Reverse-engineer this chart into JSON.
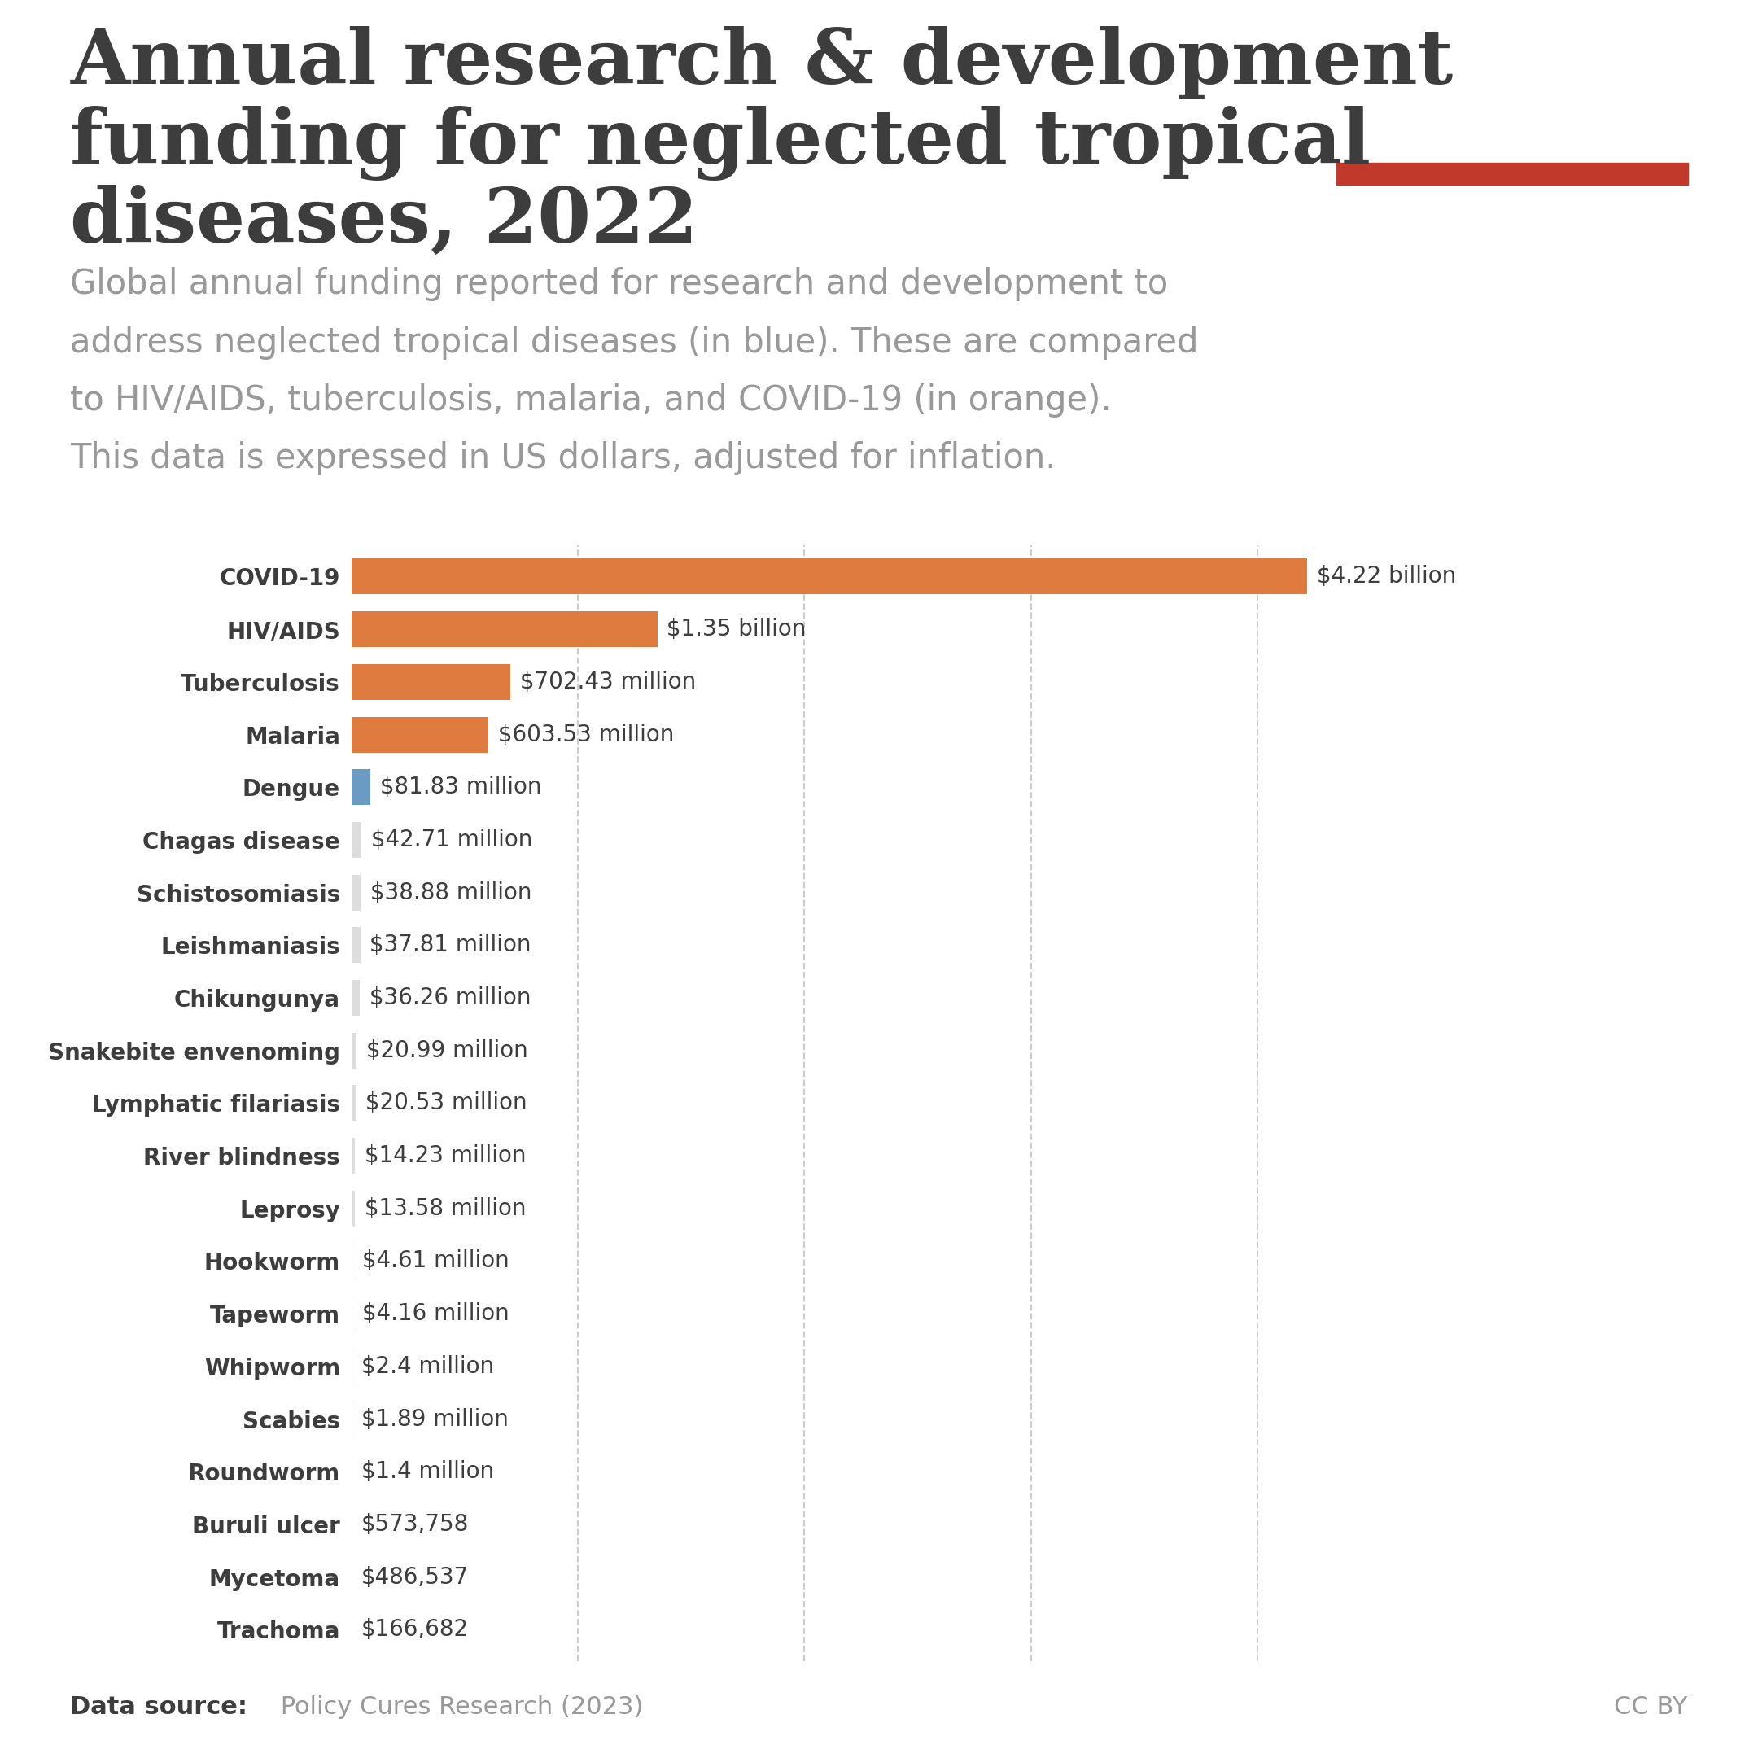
{
  "title_line1": "Annual research & development",
  "title_line2": "funding for neglected tropical",
  "title_line3": "diseases, 2022",
  "subtitle_lines": [
    "Global annual funding reported for research and development to",
    "address neglected tropical diseases (in blue). These are compared",
    "to HIV/AIDS, tuberculosis, malaria, and COVID-19 (in orange).",
    "This data is expressed in US dollars, adjusted for inflation."
  ],
  "categories": [
    "COVID-19",
    "HIV/AIDS",
    "Tuberculosis",
    "Malaria",
    "Dengue",
    "Chagas disease",
    "Schistosomiasis",
    "Leishmaniasis",
    "Chikungunya",
    "Snakebite envenoming",
    "Lymphatic filariasis",
    "River blindness",
    "Leprosy",
    "Hookworm",
    "Tapeworm",
    "Whipworm",
    "Scabies",
    "Roundworm",
    "Buruli ulcer",
    "Mycetoma",
    "Trachoma"
  ],
  "values": [
    4220000000,
    1350000000,
    702430000,
    603530000,
    81830000,
    42710000,
    38880000,
    37810000,
    36260000,
    20990000,
    20530000,
    14230000,
    13580000,
    4610000,
    4160000,
    2400000,
    1890000,
    1400000,
    573758,
    486537,
    166682
  ],
  "labels": [
    "$4.22 billion",
    "$1.35 billion",
    "$702.43 million",
    "$603.53 million",
    "$81.83 million",
    "$42.71 million",
    "$38.88 million",
    "$37.81 million",
    "$36.26 million",
    "$20.99 million",
    "$20.53 million",
    "$14.23 million",
    "$13.58 million",
    "$4.61 million",
    "$4.16 million",
    "$2.4 million",
    "$1.89 million",
    "$1.4 million",
    "$573,758",
    "$486,537",
    "$166,682"
  ],
  "comparison_color": "#E07B3F",
  "ntd_color": "#6B9BC3",
  "no_bar_color": "#dddddd",
  "background_color": "#ffffff",
  "title_color": "#3d3d3d",
  "subtitle_color": "#999999",
  "label_color": "#3d3d3d",
  "data_source_bold": "Data source:",
  "data_source_rest": " Policy Cures Research (2023)",
  "cc_by": "CC BY",
  "owid_bg": "#1a3a5c",
  "owid_red": "#c0392b",
  "gridline_color": "#cccccc",
  "grid_values": [
    1000000000,
    2000000000,
    3000000000,
    4000000000
  ],
  "title_fontsize": 68,
  "subtitle_fontsize": 30,
  "bar_label_fontsize": 20,
  "ytick_fontsize": 20,
  "footer_fontsize": 22
}
